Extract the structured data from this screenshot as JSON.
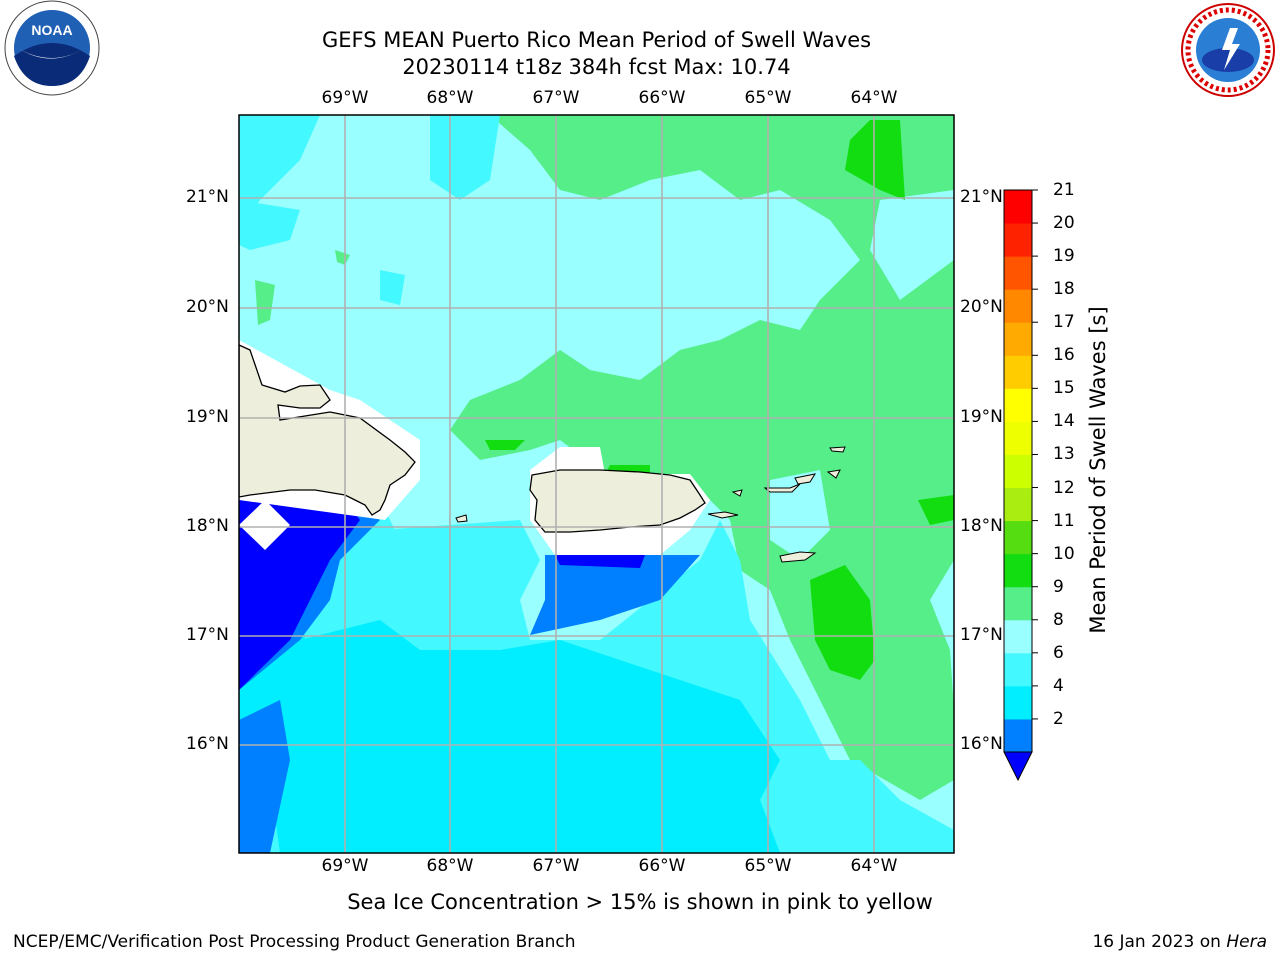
{
  "header": {
    "title_line1": "GEFS MEAN Puerto Rico Mean Period of Swell Waves",
    "title_line2": "20230114 t18z 384h fcst   Max: 10.74"
  },
  "map": {
    "projection": "lat-lon",
    "extent": {
      "lon_min": -70.0,
      "lon_max": -63.3,
      "lat_min": 15.0,
      "lat_max": 21.75
    },
    "longitude_labels": [
      "69°W",
      "68°W",
      "67°W",
      "66°W",
      "65°W",
      "64°W"
    ],
    "latitude_labels": [
      "21°N",
      "20°N",
      "19°N",
      "18°N",
      "17°N",
      "16°N"
    ],
    "land_color": "#EEEEDD",
    "gridline_color": "#B0B0B0",
    "land_masses": [
      "Hispaniola (Dominican Republic)",
      "Puerto Rico",
      "Virgin Islands"
    ]
  },
  "colorbar": {
    "label": "Mean Period of Swell Waves [s]",
    "ticks": [
      "21",
      "20",
      "19",
      "18",
      "17",
      "16",
      "15",
      "14",
      "13",
      "12",
      "11",
      "10",
      "9",
      "8",
      "6",
      "4",
      "2"
    ],
    "levels": [
      {
        "range": "2-4",
        "color": "#0080FF"
      },
      {
        "range": "4-6",
        "color": "#00EEFF"
      },
      {
        "range": "6-8",
        "color": "#44F8FF"
      },
      {
        "range": "8-9",
        "color": "#99FFFF"
      },
      {
        "range": "9-10",
        "color": "#55EE88"
      },
      {
        "range": "10-11",
        "color": "#11DD11"
      },
      {
        "range": "11-12",
        "color": "#55DD11"
      },
      {
        "range": "12-13",
        "color": "#AAEE11"
      },
      {
        "range": "13-14",
        "color": "#CCFF00"
      },
      {
        "range": "14-15",
        "color": "#EEFF00"
      },
      {
        "range": "15-16",
        "color": "#FFFF00"
      },
      {
        "range": "16-17",
        "color": "#FFCC00"
      },
      {
        "range": "17-18",
        "color": "#FFAA00"
      },
      {
        "range": "18-19",
        "color": "#FF8800"
      },
      {
        "range": "19-20",
        "color": "#FF5500"
      },
      {
        "range": "20-21",
        "color": "#FF2200"
      },
      {
        "range": "21+",
        "color": "#FF0000"
      }
    ],
    "under_color": "#0000FF"
  },
  "note": "Sea Ice Concentration > 15% is shown in pink to yellow",
  "footer": {
    "left": "NCEP/EMC/Verification Post Processing Product Generation Branch",
    "right_date": "16 Jan 2023 on ",
    "right_machine": "Hera"
  },
  "logos": {
    "left": "noaa-logo",
    "right": "national-weather-service-logo",
    "noaa_text": "NOAA",
    "nws_text": "NATIONAL WEATHER SERVICE"
  }
}
